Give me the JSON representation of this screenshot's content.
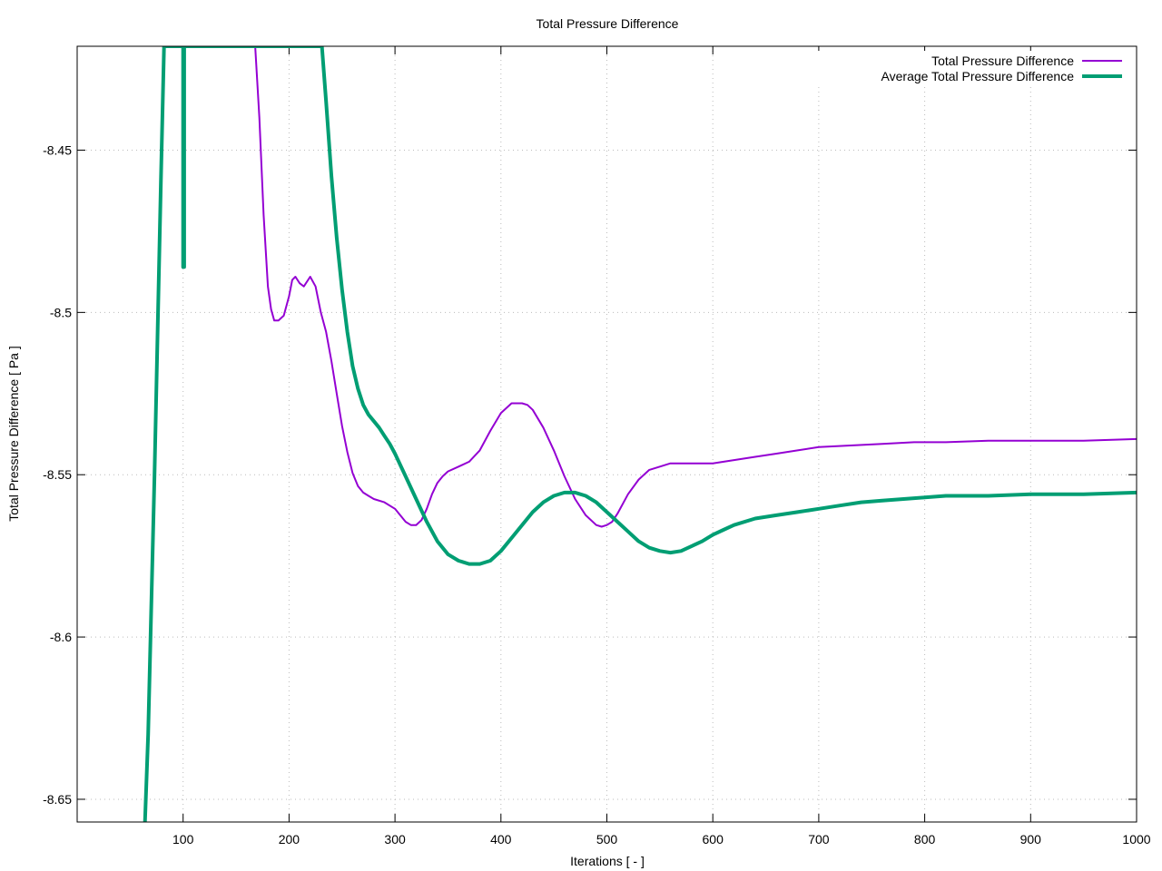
{
  "chart_data": {
    "type": "line",
    "title": "Total Pressure Difference",
    "xlabel": "Iterations [ - ]",
    "ylabel": "Total Pressure Difference [ Pa ]",
    "xlim": [
      0,
      1000
    ],
    "ylim": [
      -8.657,
      -8.418
    ],
    "xticks": [
      100,
      200,
      300,
      400,
      500,
      600,
      700,
      800,
      900,
      1000
    ],
    "xtick_labels": [
      "100",
      "200",
      "300",
      "400",
      "500",
      "600",
      "700",
      "800",
      "900",
      "1000"
    ],
    "yticks": [
      -8.65,
      -8.6,
      -8.55,
      -8.5,
      -8.45
    ],
    "ytick_labels": [
      "-8.65",
      "-8.6",
      "-8.55",
      "-8.5",
      "-8.45"
    ],
    "grid": true,
    "legend_position": "top-right",
    "series": [
      {
        "name": "Total Pressure Difference",
        "color": "#9400D3",
        "linewidth": "thin",
        "x": [
          168,
          172,
          176,
          180,
          183,
          186,
          190,
          195,
          200,
          203,
          206,
          210,
          214,
          220,
          225,
          230,
          235,
          240,
          245,
          250,
          255,
          260,
          265,
          270,
          275,
          280,
          290,
          300,
          305,
          310,
          315,
          320,
          325,
          330,
          335,
          340,
          345,
          350,
          360,
          370,
          380,
          390,
          400,
          410,
          420,
          425,
          430,
          440,
          450,
          460,
          470,
          480,
          490,
          495,
          500,
          505,
          510,
          520,
          530,
          540,
          550,
          560,
          570,
          580,
          600,
          620,
          640,
          660,
          680,
          700,
          730,
          760,
          790,
          820,
          860,
          900,
          950,
          1000
        ],
        "y": [
          -8.418,
          -8.44,
          -8.47,
          -8.492,
          -8.499,
          -8.5025,
          -8.5025,
          -8.501,
          -8.495,
          -8.49,
          -8.489,
          -8.491,
          -8.492,
          -8.489,
          -8.492,
          -8.5,
          -8.506,
          -8.515,
          -8.525,
          -8.535,
          -8.543,
          -8.5495,
          -8.5535,
          -8.5555,
          -8.5565,
          -8.5575,
          -8.5585,
          -8.5605,
          -8.5625,
          -8.5645,
          -8.5655,
          -8.5655,
          -8.564,
          -8.5605,
          -8.556,
          -8.5525,
          -8.5505,
          -8.549,
          -8.5475,
          -8.546,
          -8.5425,
          -8.5365,
          -8.531,
          -8.528,
          -8.528,
          -8.5285,
          -8.53,
          -8.5355,
          -8.5425,
          -8.5505,
          -8.5575,
          -8.5625,
          -8.5655,
          -8.566,
          -8.5655,
          -8.5645,
          -8.562,
          -8.556,
          -8.5515,
          -8.5485,
          -8.5475,
          -8.5465,
          -8.5465,
          -8.5465,
          -8.5465,
          -8.5455,
          -8.5445,
          -8.5435,
          -8.5425,
          -8.5415,
          -8.541,
          -8.5405,
          -8.54,
          -8.54,
          -8.5395,
          -8.5395,
          -8.5395,
          -8.539
        ]
      },
      {
        "name": "Average Total Pressure Difference",
        "color": "#009E73",
        "linewidth": "thick",
        "x": [
          64,
          67,
          70,
          73,
          76,
          79,
          82,
          100,
          100,
          101,
          101,
          231,
          235,
          240,
          245,
          250,
          255,
          260,
          265,
          270,
          275,
          280,
          285,
          290,
          295,
          300,
          310,
          320,
          330,
          340,
          350,
          360,
          370,
          380,
          390,
          400,
          410,
          420,
          430,
          440,
          450,
          460,
          470,
          480,
          490,
          500,
          510,
          520,
          530,
          540,
          550,
          560,
          570,
          580,
          590,
          600,
          610,
          620,
          640,
          660,
          680,
          700,
          720,
          740,
          760,
          780,
          800,
          820,
          860,
          900,
          950,
          1000
        ],
        "y": [
          -8.657,
          -8.63,
          -8.59,
          -8.55,
          -8.505,
          -8.46,
          -8.418,
          -8.418,
          -8.486,
          -8.486,
          -8.418,
          -8.418,
          -8.435,
          -8.458,
          -8.477,
          -8.493,
          -8.506,
          -8.5165,
          -8.5235,
          -8.5285,
          -8.5315,
          -8.5335,
          -8.5355,
          -8.538,
          -8.5405,
          -8.5435,
          -8.5505,
          -8.5575,
          -8.5645,
          -8.5705,
          -8.5745,
          -8.5765,
          -8.5775,
          -8.5775,
          -8.5765,
          -8.5735,
          -8.5695,
          -8.5655,
          -8.5615,
          -8.5585,
          -8.5565,
          -8.5555,
          -8.5555,
          -8.5565,
          -8.5585,
          -8.5615,
          -8.5645,
          -8.5675,
          -8.5705,
          -8.5725,
          -8.5735,
          -8.574,
          -8.5735,
          -8.572,
          -8.5705,
          -8.5685,
          -8.567,
          -8.5655,
          -8.5635,
          -8.5625,
          -8.5615,
          -8.5605,
          -8.5595,
          -8.5585,
          -8.558,
          -8.5575,
          -8.557,
          -8.5565,
          -8.5565,
          -8.556,
          -8.556,
          -8.5555
        ]
      }
    ]
  }
}
